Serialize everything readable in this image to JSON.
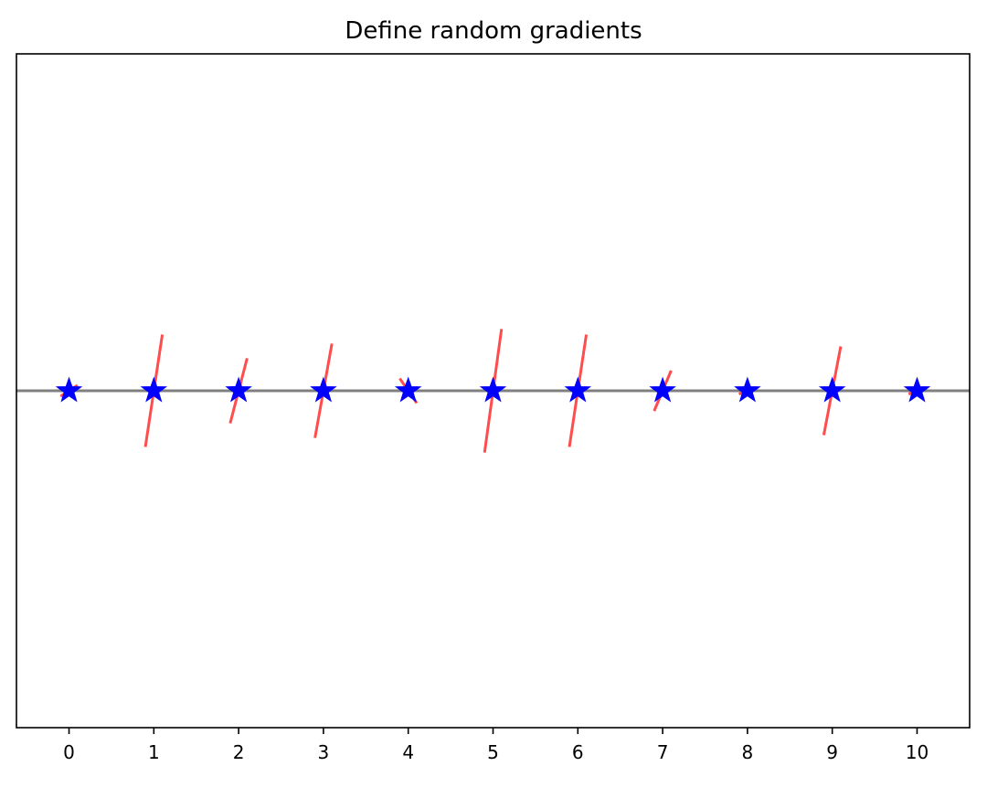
{
  "chart_data": {
    "type": "scatter",
    "title": "Define random gradients",
    "xlabel": "",
    "ylabel": "",
    "xlim": [
      -0.62,
      10.62
    ],
    "ylim": [
      -1.2,
      1.2
    ],
    "xticks": [
      0,
      1,
      2,
      3,
      4,
      5,
      6,
      7,
      8,
      9,
      10
    ],
    "xtick_labels": [
      "0",
      "1",
      "2",
      "3",
      "4",
      "5",
      "6",
      "7",
      "8",
      "9",
      "10"
    ],
    "yticks_visible": false,
    "grid": false,
    "baseline_y": 0,
    "points": {
      "x": [
        0,
        1,
        2,
        3,
        4,
        5,
        6,
        7,
        8,
        9,
        10
      ],
      "y": [
        0,
        0,
        0,
        0,
        0,
        0,
        0,
        0,
        0,
        0,
        0
      ]
    },
    "gradients": [
      0.2,
      2.0,
      1.16,
      1.68,
      -0.44,
      2.2,
      2.0,
      0.72,
      0.12,
      1.58,
      0.12
    ],
    "segment_half_width": 0.1,
    "colors": {
      "marker": "#0000ff",
      "segment": "#ff4c4c",
      "baseline": "#808080",
      "axes": "#000000"
    }
  }
}
